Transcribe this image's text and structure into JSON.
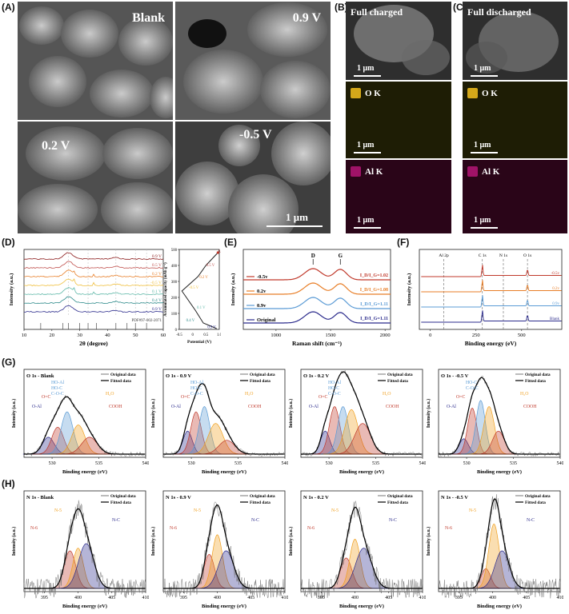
{
  "panels": {
    "A": {
      "letter": "(A)",
      "tiles": [
        "Blank",
        "0.9 V",
        "0.2 V",
        "-0.5 V"
      ],
      "scale": "1 μm"
    },
    "B": {
      "letter": "(B)",
      "title": "Full charged",
      "scale": "1 μm"
    },
    "C": {
      "letter": "(C)",
      "title": "Full discharged",
      "scale": "1 μm"
    },
    "eds": {
      "o": "O K",
      "al": "Al K",
      "o_color": "#d4a81a",
      "al_color": "#a01368"
    },
    "D": {
      "letter": "(D)"
    },
    "E": {
      "letter": "(E)"
    },
    "F": {
      "letter": "(F)"
    },
    "G": {
      "letter": "(G)"
    },
    "H": {
      "letter": "(H)"
    }
  },
  "chart_data": [
    {
      "id": "D-xrd",
      "type": "line",
      "xlabel": "2θ (degree)",
      "ylabel": "Intensity (a.u.)",
      "xlim": [
        10,
        60
      ],
      "xticks": [
        10,
        20,
        30,
        40,
        50,
        60
      ],
      "series_labels": [
        "0.9 V",
        "0.5 V",
        "0.2 V",
        "-0.5 V",
        "0.1 V",
        "0.4 V",
        "0.9 V"
      ],
      "series_colors": [
        "#8b1a1a",
        "#c0504d",
        "#e87e27",
        "#f0c040",
        "#5fb8a8",
        "#2e8b8b",
        "#2b2b8c"
      ],
      "bottom_label": "Blank",
      "reference": "PDF#97-002-2071"
    },
    {
      "id": "D-cap",
      "type": "line",
      "xlabel": "Potential (V)",
      "ylabel": "Accumulated capacity (mAh g⁻¹)",
      "xlim": [
        -0.5,
        1.0
      ],
      "ylim": [
        0,
        500
      ],
      "xticks": [
        "-0.5",
        "0",
        "0.5",
        "1.0"
      ],
      "yticks": [
        0,
        100,
        200,
        300,
        400,
        500
      ],
      "point_labels": [
        "0.9 V",
        "0.5 V",
        "0.2 V",
        "-0.5 V",
        "0.1 V",
        "0.4 V",
        "0.9 V"
      ]
    },
    {
      "id": "E-raman",
      "type": "line",
      "xlabel": "Raman shift (cm⁻¹)",
      "ylabel": "Intensity (a.u.)",
      "xlim": [
        700,
        2050
      ],
      "xticks": [
        1000,
        1500,
        2000
      ],
      "peaks": [
        "D",
        "G"
      ],
      "series": [
        {
          "name": "-0.5v",
          "ratio": "I_D/I_G=1.02",
          "color": "#c0392b"
        },
        {
          "name": "0.2v",
          "ratio": "I_D/I_G=1.08",
          "color": "#e87e27"
        },
        {
          "name": "0.9v",
          "ratio": "I_D/I_G=1.11",
          "color": "#5b9bd5"
        },
        {
          "name": "Original",
          "ratio": "I_D/I_G=1.11",
          "color": "#2b2b8c"
        }
      ]
    },
    {
      "id": "F-xps",
      "type": "line",
      "xlabel": "Binding energy (eV)",
      "ylabel": "Intensity (a.u.)",
      "xticks": [
        0,
        250,
        500
      ],
      "markers": [
        "Al 2p",
        "C 1s",
        "N 1s",
        "O 1s"
      ],
      "series": [
        {
          "name": "-0.5v",
          "color": "#c0392b"
        },
        {
          "name": "0.2v",
          "color": "#e87e27"
        },
        {
          "name": "0.9v",
          "color": "#5b9bd5"
        },
        {
          "name": "Blank",
          "color": "#2b2b8c"
        }
      ]
    }
  ],
  "o1s_plots": [
    {
      "title": "O 1s - Blank",
      "labels": [
        "HO-Al",
        "HO-C",
        "C-O-C"
      ]
    },
    {
      "title": "O 1s - 0.9 V",
      "labels": [
        "HO-Al",
        "HO-C",
        "C-O-C"
      ]
    },
    {
      "title": "O 1s - 0.2 V",
      "labels": [
        "HO-Al",
        "HO-C",
        "C-O-C"
      ]
    },
    {
      "title": "O 1s - -0.5 V",
      "labels": [
        "HO-C",
        "C-O-C"
      ]
    }
  ],
  "o1s_common": {
    "legend_orig": "Original data",
    "legend_fit": "Fitted data",
    "o_eq_c": "O=C",
    "o_al": "O-Al",
    "h2o": "H₂O",
    "cooh": "COOH",
    "xticks": [
      "530",
      "535",
      "540"
    ],
    "xlabel": "Binding energy (eV)",
    "ylabel": "Intensity (a.u.)"
  },
  "n1s_plots": [
    {
      "title": "N 1s - Blank"
    },
    {
      "title": "N 1s - 0.9 V"
    },
    {
      "title": "N 1s - 0.2 V"
    },
    {
      "title": "N 1s - -0.5 V"
    }
  ],
  "n1s_common": {
    "legend_orig": "Original data",
    "legend_fit": "Fitted data",
    "n5": "N-5",
    "n6": "N-6",
    "nc": "N-C",
    "xticks": [
      "395",
      "400",
      "405",
      "410"
    ],
    "xlabel": "Binding energy (eV)",
    "ylabel": "Intensity (a.u.)"
  }
}
